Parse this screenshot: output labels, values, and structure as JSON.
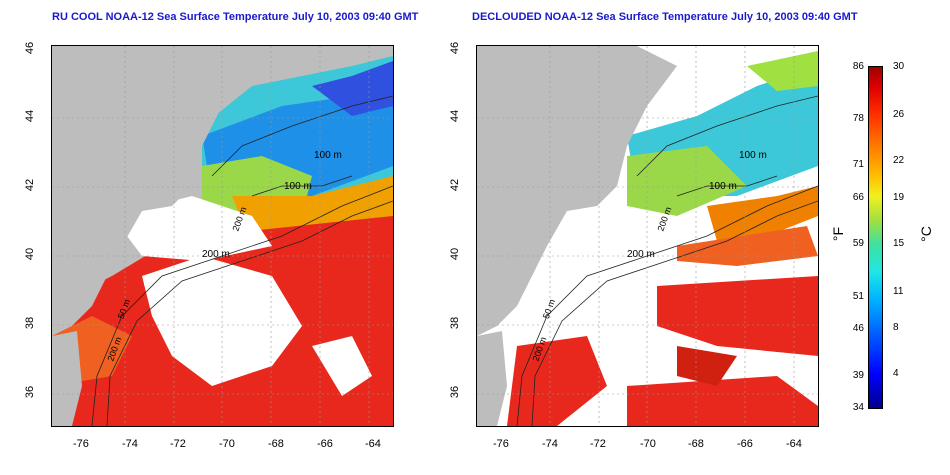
{
  "left_panel": {
    "title": "RU COOL NOAA-12 Sea Surface Temperature July 10, 2003 09:40 GMT",
    "contour_labels": [
      "100 m",
      "100 m",
      "200 m",
      "200 m",
      "50 m",
      "200 m"
    ]
  },
  "right_panel": {
    "title": "DECLOUDED NOAA-12 Sea Surface Temperature July 10, 2003 09:40 GMT",
    "contour_labels": [
      "100 m",
      "100 m",
      "200 m",
      "200 m",
      "50 m",
      "200 m"
    ]
  },
  "axes": {
    "x_ticks": [
      "-76",
      "-74",
      "-72",
      "-70",
      "-68",
      "-66",
      "-64"
    ],
    "y_ticks": [
      "46",
      "44",
      "42",
      "40",
      "38",
      "36"
    ]
  },
  "colorbar": {
    "fahrenheit_label": "°F",
    "celsius_label": "°C",
    "fahrenheit_ticks": [
      "86",
      "78",
      "71",
      "66",
      "59",
      "51",
      "46",
      "39",
      "34"
    ],
    "celsius_ticks": [
      "30",
      "26",
      "22",
      "19",
      "15",
      "11",
      "8",
      "4"
    ]
  },
  "colors": {
    "title": "#1a1acc",
    "cloud": "#ffffff",
    "land": "#bdbdbd",
    "warm": "#e8281c",
    "cool": "#2a6ee8"
  }
}
